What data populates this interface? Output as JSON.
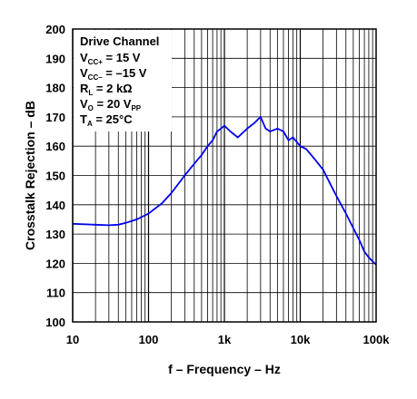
{
  "chart_data": {
    "type": "line",
    "title": "",
    "xlabel": "f – Frequency – Hz",
    "ylabel": "Crosstalk Rejection – dB",
    "xscale": "log",
    "xlim": [
      10,
      100000
    ],
    "ylim": [
      100,
      200
    ],
    "x_ticks": [
      10,
      100,
      1000,
      10000,
      100000
    ],
    "x_tick_labels": [
      "10",
      "100",
      "1k",
      "10k",
      "100k"
    ],
    "y_ticks": [
      100,
      110,
      120,
      130,
      140,
      150,
      160,
      170,
      180,
      190,
      200
    ],
    "y_tick_labels": [
      "100",
      "110",
      "120",
      "130",
      "140",
      "150",
      "160",
      "170",
      "180",
      "190",
      "200"
    ],
    "grid": true,
    "annotation": {
      "title": "Drive Channel",
      "lines": [
        {
          "main": "V",
          "sub": "CC+",
          "rest": " = 15 V"
        },
        {
          "main": "V",
          "sub": "CC–",
          "rest": " = –15 V"
        },
        {
          "main": "R",
          "sub": "L",
          "rest": " = 2 kΩ"
        },
        {
          "main": "V",
          "sub": "O",
          "rest": " = 20 V",
          "sub2": "PP"
        },
        {
          "main": "T",
          "sub": "A",
          "rest": " = 25°C"
        }
      ],
      "placement": "top-left"
    },
    "series": [
      {
        "color": "#0000ee",
        "x": [
          10,
          15,
          20,
          30,
          40,
          50,
          70,
          100,
          150,
          200,
          300,
          400,
          500,
          600,
          700,
          800,
          900,
          1000,
          1200,
          1500,
          2000,
          2500,
          3000,
          3500,
          4000,
          5000,
          6000,
          7000,
          8000,
          10000,
          12000,
          15000,
          20000,
          25000,
          30000,
          40000,
          50000,
          60000,
          70000,
          80000,
          100000
        ],
        "y": [
          133.5,
          133.3,
          133.2,
          133,
          133.2,
          133.8,
          135,
          137,
          140.5,
          144,
          150,
          154,
          157,
          160,
          162,
          165,
          166,
          167,
          165,
          163,
          166,
          168,
          170,
          166,
          165,
          166,
          165,
          162,
          163,
          160,
          159,
          156,
          152,
          147,
          143,
          137,
          132,
          128,
          124,
          122,
          119.5
        ]
      }
    ]
  }
}
